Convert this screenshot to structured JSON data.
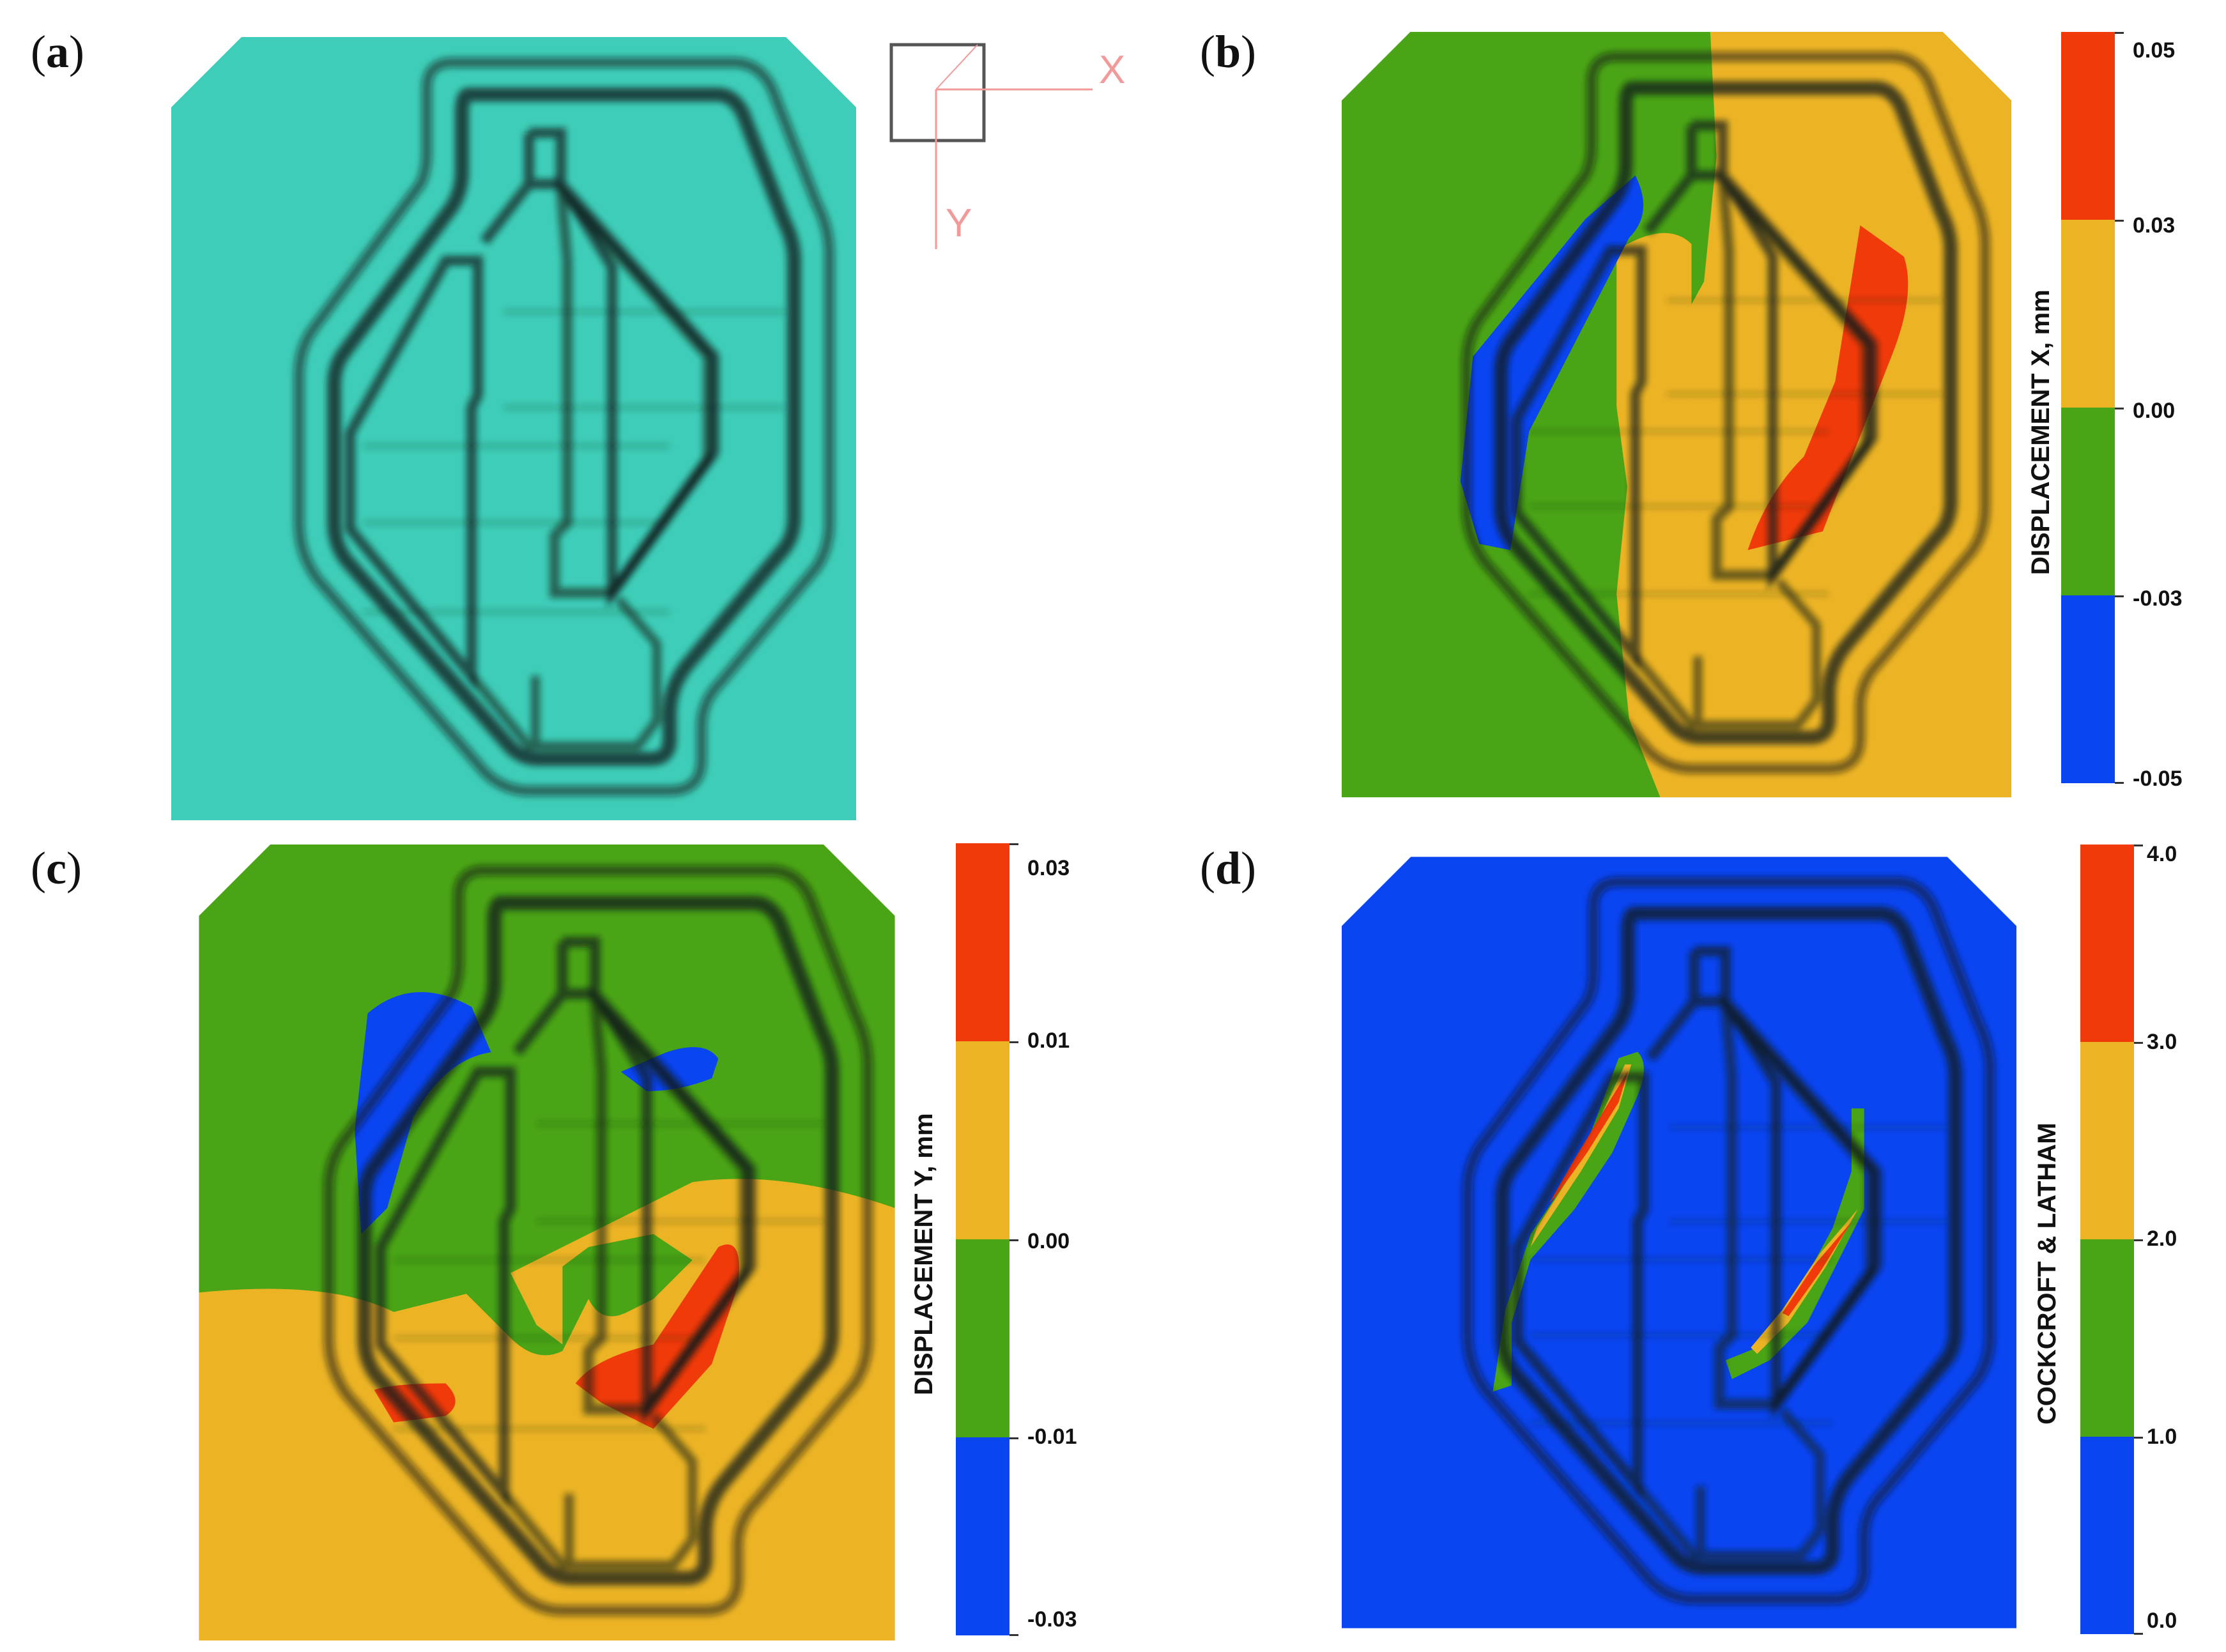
{
  "panels": {
    "a": {
      "label_open": "(",
      "label_letter": "a",
      "label_close": ")"
    },
    "b": {
      "label_open": "(",
      "label_letter": "b",
      "label_close": ")"
    },
    "c": {
      "label_open": "(",
      "label_letter": "c",
      "label_close": ")"
    },
    "d": {
      "label_open": "(",
      "label_letter": "d",
      "label_close": ")"
    }
  },
  "axis_indicator": {
    "x_label": "X",
    "y_label": "Y",
    "color": "#f29a9a"
  },
  "colors": {
    "teal": "#3ecdb8",
    "green": "#4aa516",
    "yellow": "#ecb425",
    "red": "#f13a0a",
    "blue": "#0a45f2",
    "groove": "#1c2a28"
  },
  "colorbars": {
    "b": {
      "title": "DISPLACEMENT X, mm",
      "ticks": [
        "0.05",
        "0.03",
        "0.00",
        "-0.03",
        "-0.05"
      ]
    },
    "c": {
      "title": "DISPLACEMENT Y, mm",
      "ticks": [
        "0.03",
        "0.01",
        "0.00",
        "-0.01",
        "-0.03"
      ]
    },
    "d": {
      "title": "COCKCROFT & LATHAM",
      "ticks": [
        "4.0",
        "3.0",
        "2.0",
        "1.0",
        "0.0"
      ]
    }
  }
}
